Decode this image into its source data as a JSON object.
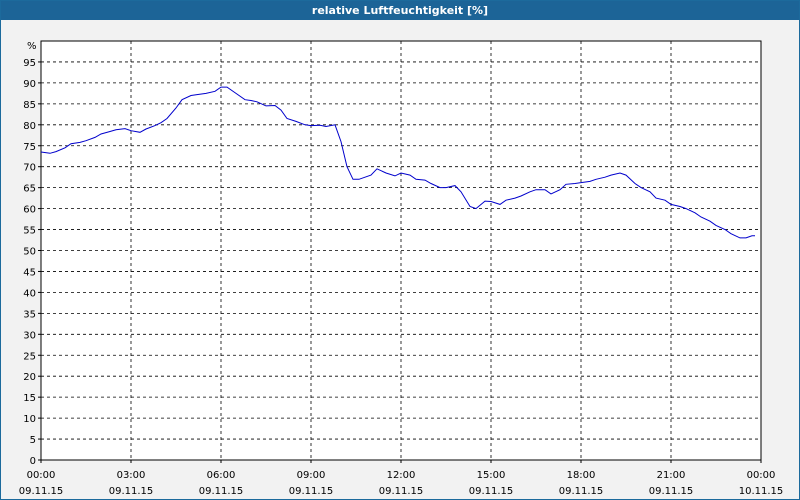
{
  "window": {
    "title": "relative Luftfeuchtigkeit [%]"
  },
  "colors": {
    "title_bar": "#1c6497",
    "plot_bg": "#ffffff",
    "line": "#0000cc",
    "grid": "#000000"
  },
  "chart_data": {
    "type": "line",
    "title": "relative Luftfeuchtigkeit [%]",
    "ylabel": "%",
    "xlabel": "",
    "ylim": [
      0,
      100
    ],
    "y_ticks": [
      0,
      5,
      10,
      15,
      20,
      25,
      30,
      35,
      40,
      45,
      50,
      55,
      60,
      65,
      70,
      75,
      80,
      85,
      90,
      95
    ],
    "x_range_hours": [
      0,
      24
    ],
    "x_ticks": [
      {
        "time": "00:00",
        "date": "09.11.15"
      },
      {
        "time": "03:00",
        "date": "09.11.15"
      },
      {
        "time": "06:00",
        "date": "09.11.15"
      },
      {
        "time": "09:00",
        "date": "09.11.15"
      },
      {
        "time": "12:00",
        "date": "09.11.15"
      },
      {
        "time": "15:00",
        "date": "09.11.15"
      },
      {
        "time": "18:00",
        "date": "09.11.15"
      },
      {
        "time": "21:00",
        "date": "09.11.15"
      },
      {
        "time": "00:00",
        "date": "10.11.15"
      }
    ],
    "grid": true,
    "series": [
      {
        "x_hours": [
          0,
          0.3,
          0.5,
          0.8,
          1.0,
          1.3,
          1.5,
          1.8,
          2.0,
          2.3,
          2.5,
          2.8,
          3.0,
          3.3,
          3.5,
          3.8,
          4.0,
          4.2,
          4.5,
          4.7,
          5.0,
          5.2,
          5.5,
          5.8,
          6.0,
          6.2,
          6.5,
          6.8,
          7.0,
          7.2,
          7.5,
          7.8,
          8.0,
          8.2,
          8.5,
          8.8,
          9.0,
          9.3,
          9.5,
          9.8,
          10.0,
          10.2,
          10.4,
          10.6,
          10.8,
          11.0,
          11.2,
          11.5,
          11.8,
          12.0,
          12.3,
          12.5,
          12.8,
          13.0,
          13.3,
          13.5,
          13.8,
          14.0,
          14.3,
          14.5,
          14.8,
          15.0,
          15.3,
          15.5,
          15.8,
          16.0,
          16.3,
          16.5,
          16.8,
          17.0,
          17.3,
          17.5,
          17.8,
          18.0,
          18.3,
          18.5,
          18.8,
          19.0,
          19.3,
          19.5,
          19.8,
          20.0,
          20.3,
          20.5,
          20.8,
          21.0,
          21.3,
          21.5,
          21.8,
          22.0,
          22.3,
          22.5,
          22.8,
          23.0,
          23.3,
          23.5,
          23.7,
          23.8
        ],
        "values": [
          73.5,
          73.2,
          73.6,
          74.5,
          75.5,
          75.8,
          76.2,
          77.0,
          77.8,
          78.4,
          78.8,
          79.1,
          78.6,
          78.2,
          79.0,
          79.8,
          80.5,
          81.5,
          84.0,
          86.0,
          87.0,
          87.2,
          87.5,
          88.0,
          89.0,
          89.0,
          87.5,
          86.0,
          85.8,
          85.5,
          84.5,
          84.6,
          83.5,
          81.5,
          80.8,
          80.0,
          79.8,
          79.9,
          79.6,
          80.0,
          76.0,
          70.0,
          67.0,
          67.0,
          67.5,
          68.0,
          69.5,
          68.5,
          67.8,
          68.5,
          68.0,
          67.0,
          66.8,
          66.0,
          65.0,
          65.0,
          65.5,
          64.0,
          60.5,
          60.0,
          61.8,
          61.7,
          61.0,
          62.0,
          62.5,
          63.0,
          64.0,
          64.5,
          64.5,
          63.5,
          64.5,
          65.8,
          66.0,
          66.2,
          66.5,
          67.0,
          67.5,
          68.0,
          68.5,
          68.0,
          66.0,
          65.0,
          64.0,
          62.5,
          62.0,
          61.0,
          60.5,
          60.0,
          59.0,
          58.0,
          57.0,
          56.0,
          55.0,
          54.0,
          53.0,
          53.0,
          53.5,
          53.5
        ]
      }
    ]
  }
}
